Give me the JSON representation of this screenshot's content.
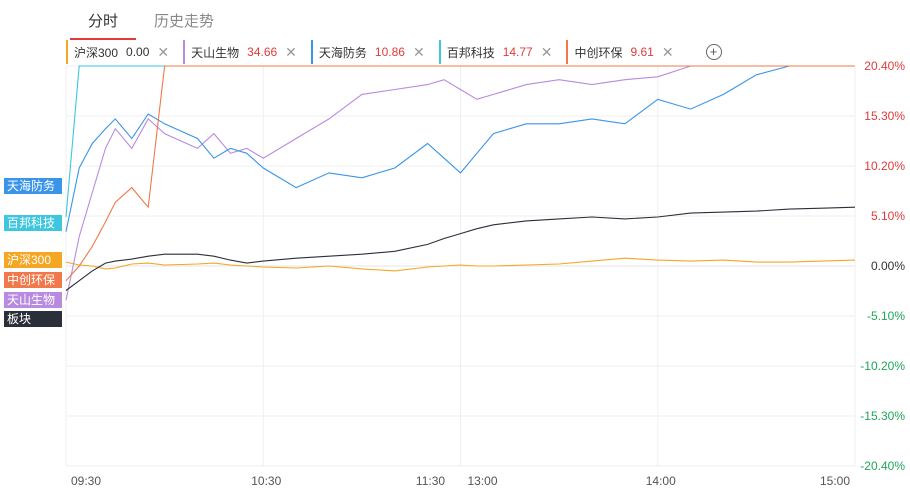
{
  "tabs": {
    "intraday": "分时",
    "history": "历史走势"
  },
  "legend": [
    {
      "name": "沪深300",
      "value": "0.00",
      "color": "#f5a623",
      "valueColor": "#333333"
    },
    {
      "name": "天山生物",
      "value": "34.66",
      "color": "#b88ae0",
      "valueColor": "#e03b3b"
    },
    {
      "name": "天海防务",
      "value": "10.86",
      "color": "#3a95e8",
      "valueColor": "#e03b3b"
    },
    {
      "name": "百邦科技",
      "value": "14.77",
      "color": "#3ec6e0",
      "valueColor": "#e03b3b"
    },
    {
      "name": "中创环保",
      "value": "9.61",
      "color": "#f0784a",
      "valueColor": "#e03b3b"
    }
  ],
  "left_tags": [
    {
      "label": "天海防务",
      "color": "#3a95e8"
    },
    {
      "label": "百邦科技",
      "color": "#3ec6e0"
    },
    {
      "label": "沪深300",
      "color": "#f5a623"
    },
    {
      "label": "中创环保",
      "color": "#f0784a"
    },
    {
      "label": "天山生物",
      "color": "#b88ae0"
    },
    {
      "label": "板块",
      "color": "#2b2f3a"
    }
  ],
  "chart_data": {
    "type": "line",
    "y_ticks": [
      "20.40%",
      "15.30%",
      "10.20%",
      "5.10%",
      "0.00%",
      "-5.10%",
      "-10.20%",
      "-15.30%",
      "-20.40%"
    ],
    "ylim": [
      -20.4,
      20.4
    ],
    "x_ticks": [
      "09:30",
      "10:30",
      "11:30",
      "13:00",
      "14:00",
      "15:00"
    ],
    "x": [
      0,
      4,
      8,
      12,
      15,
      20,
      25,
      30,
      40,
      45,
      50,
      55,
      60,
      70,
      80,
      90,
      100,
      110,
      115,
      120,
      125,
      130,
      140,
      150,
      160,
      170,
      180,
      190,
      200,
      210,
      220,
      230,
      240
    ],
    "series": [
      {
        "name": "沪深300",
        "color": "#f5a623",
        "values": [
          0.4,
          0.1,
          0.0,
          -0.3,
          -0.2,
          0.2,
          0.3,
          0.1,
          0.2,
          0.3,
          0.1,
          0.0,
          -0.1,
          -0.2,
          0.0,
          -0.3,
          -0.5,
          -0.1,
          0.0,
          0.1,
          0.0,
          0.0,
          0.1,
          0.2,
          0.5,
          0.8,
          0.6,
          0.5,
          0.6,
          0.4,
          0.4,
          0.5,
          0.6
        ]
      },
      {
        "name": "天山生物",
        "color": "#b88ae0",
        "values": [
          -3.5,
          3.0,
          7.5,
          12.0,
          14.0,
          12.0,
          15.0,
          13.5,
          12.0,
          13.5,
          11.5,
          12.0,
          11.0,
          13.0,
          15.0,
          17.5,
          18.0,
          18.5,
          19.0,
          18.0,
          17.0,
          17.5,
          18.5,
          19.0,
          18.5,
          19.0,
          19.3,
          20.4,
          20.4,
          20.4,
          20.4,
          20.4,
          20.4
        ]
      },
      {
        "name": "天海防务",
        "color": "#3a95e8",
        "values": [
          3.5,
          10.0,
          12.5,
          14.0,
          15.0,
          13.0,
          15.5,
          14.5,
          13.0,
          11.0,
          12.0,
          11.5,
          10.0,
          8.0,
          9.5,
          9.0,
          10.0,
          12.5,
          11.0,
          9.5,
          11.5,
          13.5,
          14.5,
          14.5,
          15.0,
          14.5,
          17.0,
          16.0,
          17.5,
          19.5,
          20.4,
          20.4,
          20.4
        ]
      },
      {
        "name": "百邦科技",
        "color": "#3ec6e0",
        "values": [
          5.0,
          20.4,
          20.4,
          20.4,
          20.4,
          20.4,
          20.4,
          20.4,
          20.4,
          20.4,
          20.4,
          20.4,
          20.4,
          20.4,
          20.4,
          20.4,
          20.4,
          20.4,
          20.4,
          20.4,
          20.4,
          20.4,
          20.4,
          20.4,
          20.4,
          20.4,
          20.4,
          20.4,
          20.4,
          20.4,
          20.4,
          20.4,
          20.4
        ]
      },
      {
        "name": "中创环保",
        "color": "#f0784a",
        "values": [
          -1.5,
          0.0,
          2.0,
          4.5,
          6.5,
          8.0,
          6.0,
          20.4,
          20.4,
          20.4,
          20.4,
          20.4,
          20.4,
          20.4,
          20.4,
          20.4,
          20.4,
          20.4,
          20.4,
          20.4,
          20.4,
          20.4,
          20.4,
          20.4,
          20.4,
          20.4,
          20.4,
          20.4,
          20.4,
          20.4,
          20.4,
          20.4,
          20.4
        ]
      },
      {
        "name": "板块",
        "color": "#2b2f3a",
        "values": [
          -2.5,
          -1.5,
          -0.5,
          0.3,
          0.5,
          0.7,
          1.0,
          1.2,
          1.2,
          1.0,
          0.6,
          0.3,
          0.5,
          0.8,
          1.0,
          1.2,
          1.5,
          2.2,
          2.8,
          3.3,
          3.8,
          4.2,
          4.6,
          4.8,
          5.0,
          4.8,
          5.0,
          5.4,
          5.5,
          5.6,
          5.8,
          5.9,
          6.0
        ]
      }
    ]
  }
}
